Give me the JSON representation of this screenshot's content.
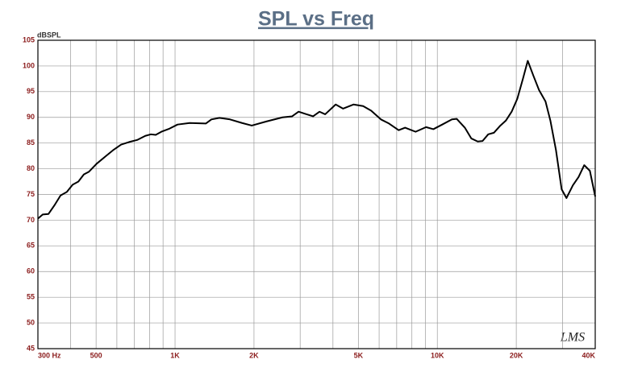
{
  "chart_data": {
    "type": "line",
    "title": "SPL vs Freq",
    "y_label": "dBSPL",
    "watermark": "LMS",
    "x": [
      300,
      313,
      329,
      348,
      366,
      387,
      407,
      428,
      449,
      469,
      503,
      540,
      580,
      623,
      668,
      717,
      770,
      809,
      844,
      887,
      952,
      1022,
      1137,
      1310,
      1376,
      1477,
      1620,
      1801,
      1961,
      2228,
      2567,
      2795,
      2958,
      3174,
      3360,
      3556,
      3736,
      4097,
      4369,
      4789,
      5214,
      5597,
      6094,
      6542,
      7122,
      7536,
      8263,
      9060,
      9660,
      10440,
      11368,
      11862,
      12731,
      13472,
      14256,
      14874,
      15636,
      16429,
      17392,
      18272,
      19204,
      20178,
      21201,
      22121,
      23246,
      24429,
      25852,
      26974,
      28346,
      29787,
      31081,
      32885,
      34561,
      36326,
      38164,
      40000
    ],
    "values": [
      70.3,
      71.1,
      71.2,
      73,
      74.8,
      75.5,
      76.9,
      77.5,
      78.9,
      79.4,
      81,
      82.3,
      83.6,
      84.7,
      85.2,
      85.6,
      86.4,
      86.7,
      86.6,
      87.2,
      87.8,
      88.6,
      88.9,
      88.8,
      89.6,
      89.9,
      89.6,
      88.9,
      88.4,
      89.2,
      90,
      90.2,
      91.1,
      90.6,
      90.2,
      91.1,
      90.6,
      92.5,
      91.7,
      92.5,
      92.2,
      91.3,
      89.6,
      88.8,
      87.5,
      88,
      87.2,
      88.1,
      87.7,
      88.6,
      89.6,
      89.7,
      88,
      85.9,
      85.3,
      85.4,
      86.7,
      87,
      88.4,
      89.4,
      91.1,
      93.6,
      97.5,
      101,
      98.1,
      95.3,
      93.1,
      89.4,
      83.6,
      76,
      74.3,
      76.8,
      78.4,
      80.7,
      79.6,
      74.6
    ],
    "color": "#000000",
    "log_x": true,
    "xlim": [
      300,
      40000
    ],
    "xticks": [
      {
        "value": 300,
        "label": "300 Hz"
      },
      500,
      {
        "value": 1000,
        "label": "1K"
      },
      {
        "value": 2000,
        "label": "2K"
      },
      {
        "value": 5000,
        "label": "5K"
      },
      {
        "value": 10000,
        "label": "10K"
      },
      {
        "value": 20000,
        "label": "20K"
      },
      {
        "value": 40000,
        "label": "40K"
      }
    ],
    "x_grid": [
      400,
      500,
      600,
      700,
      800,
      900,
      1000,
      2000,
      3000,
      4000,
      5000,
      6000,
      7000,
      8000,
      9000,
      10000,
      20000,
      30000
    ],
    "ylim": [
      45,
      105
    ],
    "yticks": [
      45,
      50,
      55,
      60,
      65,
      70,
      75,
      80,
      85,
      90,
      95,
      100,
      105
    ],
    "grid": true
  }
}
